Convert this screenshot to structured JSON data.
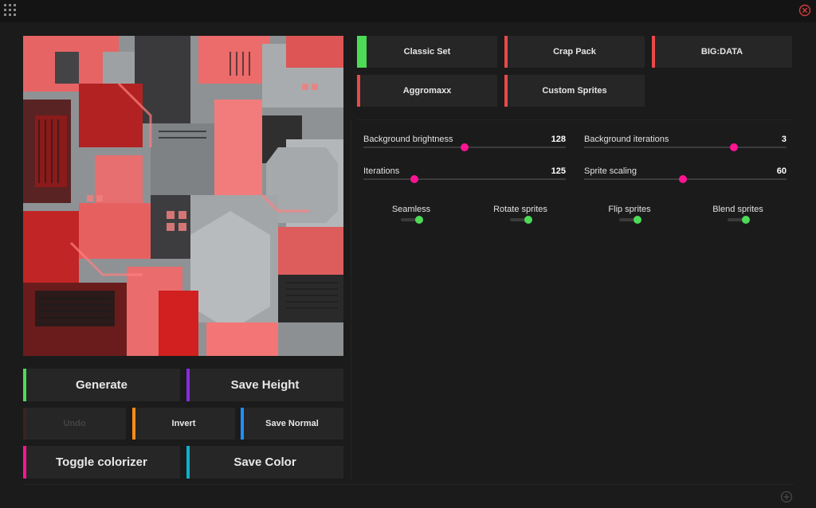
{
  "colors": {
    "green": "#4ddb57",
    "red": "#e84a4a",
    "purple": "#8a2be2",
    "orange": "#ff8c1a",
    "blue": "#1e90ff",
    "pink": "#ff1493",
    "teal": "#10b0c8",
    "disabled": "#3a2323"
  },
  "topbar": {
    "menu_icon": "grid-icon",
    "close_icon": "close-icon"
  },
  "actions": {
    "generate": "Generate",
    "save_height": "Save Height",
    "undo": "Undo",
    "invert": "Invert",
    "save_normal": "Save Normal",
    "toggle_colorizer": "Toggle colorizer",
    "save_color": "Save Color"
  },
  "sprite_sets": [
    {
      "label": "Classic Set",
      "selected": true
    },
    {
      "label": "Crap Pack",
      "selected": false
    },
    {
      "label": "BIG:DATA",
      "selected": false
    },
    {
      "label": "Aggromaxx",
      "selected": false
    },
    {
      "label": "Custom Sprites",
      "selected": false
    }
  ],
  "sliders": [
    {
      "label": "Background brightness",
      "value": "128",
      "fraction": 0.5
    },
    {
      "label": "Background iterations",
      "value": "3",
      "fraction": 0.74
    },
    {
      "label": "Iterations",
      "value": "125",
      "fraction": 0.25
    },
    {
      "label": "Sprite scaling",
      "value": "60",
      "fraction": 0.49
    }
  ],
  "toggles": [
    {
      "label": "Seamless",
      "on": true
    },
    {
      "label": "Rotate sprites",
      "on": true
    },
    {
      "label": "Flip sprites",
      "on": true
    },
    {
      "label": "Blend sprites",
      "on": true
    }
  ],
  "footer": {
    "add_icon": "plus-circle-icon"
  }
}
